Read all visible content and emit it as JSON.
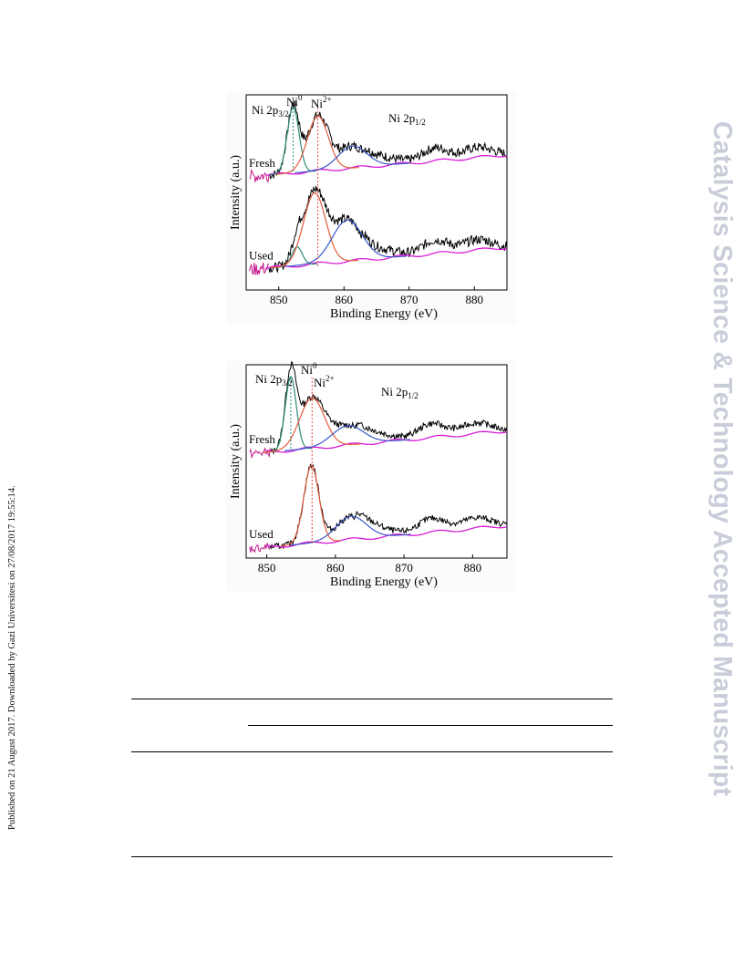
{
  "side_note": "Published on 21 August 2017. Downloaded by Gazi Universitesi on 27/08/2017 19:55:14.",
  "watermark": "Catalysis Science & Technology Accepted Manuscript",
  "figures": [
    {
      "chart_data": {
        "type": "line",
        "xlabel": "Binding Energy (eV)",
        "ylabel": "Intensity (a.u.)",
        "xlim": [
          845,
          885
        ],
        "xticks": [
          850,
          860,
          870,
          880
        ],
        "annotations": [
          {
            "base": "Ni 2p",
            "sub": "3/2",
            "sup": ""
          },
          {
            "base": "Ni",
            "sub": "",
            "sup": "0"
          },
          {
            "base": "Ni",
            "sub": "",
            "sup": "2+"
          },
          {
            "base": "Ni 2p",
            "sub": "1/2",
            "sup": ""
          }
        ],
        "series": [
          {
            "name": "Fresh",
            "peaks": [
              {
                "center": 852.2,
                "height": 0.9,
                "width": 0.9
              },
              {
                "center": 856.0,
                "height": 0.75,
                "width": 1.6
              },
              {
                "center": 861.3,
                "height": 0.3,
                "width": 2.2
              }
            ],
            "baseline": {
              "start": 0.0,
              "end": 0.3
            }
          },
          {
            "name": "Used",
            "peaks": [
              {
                "center": 852.8,
                "height": 0.25,
                "width": 0.8
              },
              {
                "center": 855.5,
                "height": 0.95,
                "width": 1.7
              },
              {
                "center": 860.5,
                "height": 0.55,
                "width": 2.3
              }
            ],
            "baseline": {
              "start": 0.0,
              "end": 0.3
            }
          }
        ]
      }
    },
    {
      "chart_data": {
        "type": "line",
        "xlabel": "Binding Energy (eV)",
        "ylabel": "Intensity (a.u.)",
        "xlim": [
          847,
          885
        ],
        "xticks": [
          850,
          860,
          870,
          880
        ],
        "annotations": [
          {
            "base": "Ni 2p",
            "sub": "3/2",
            "sup": ""
          },
          {
            "base": "Ni",
            "sub": "",
            "sup": "0"
          },
          {
            "base": "Ni",
            "sub": "",
            "sup": "2+"
          },
          {
            "base": "Ni 2p",
            "sub": "1/2",
            "sup": ""
          }
        ],
        "series": [
          {
            "name": "Fresh",
            "peaks": [
              {
                "center": 853.5,
                "height": 0.95,
                "width": 0.8
              },
              {
                "center": 856.6,
                "height": 0.65,
                "width": 1.8
              },
              {
                "center": 861.8,
                "height": 0.25,
                "width": 2.3
              }
            ],
            "baseline": {
              "start": 0.0,
              "end": 0.3
            }
          },
          {
            "name": "Used",
            "peaks": [
              {
                "center": 856.5,
                "height": 1.0,
                "width": 1.1
              },
              {
                "center": 862.3,
                "height": 0.3,
                "width": 2.2
              }
            ],
            "baseline": {
              "start": 0.0,
              "end": 0.3
            }
          }
        ]
      }
    }
  ],
  "table": {
    "rules": 4,
    "empty": true
  }
}
